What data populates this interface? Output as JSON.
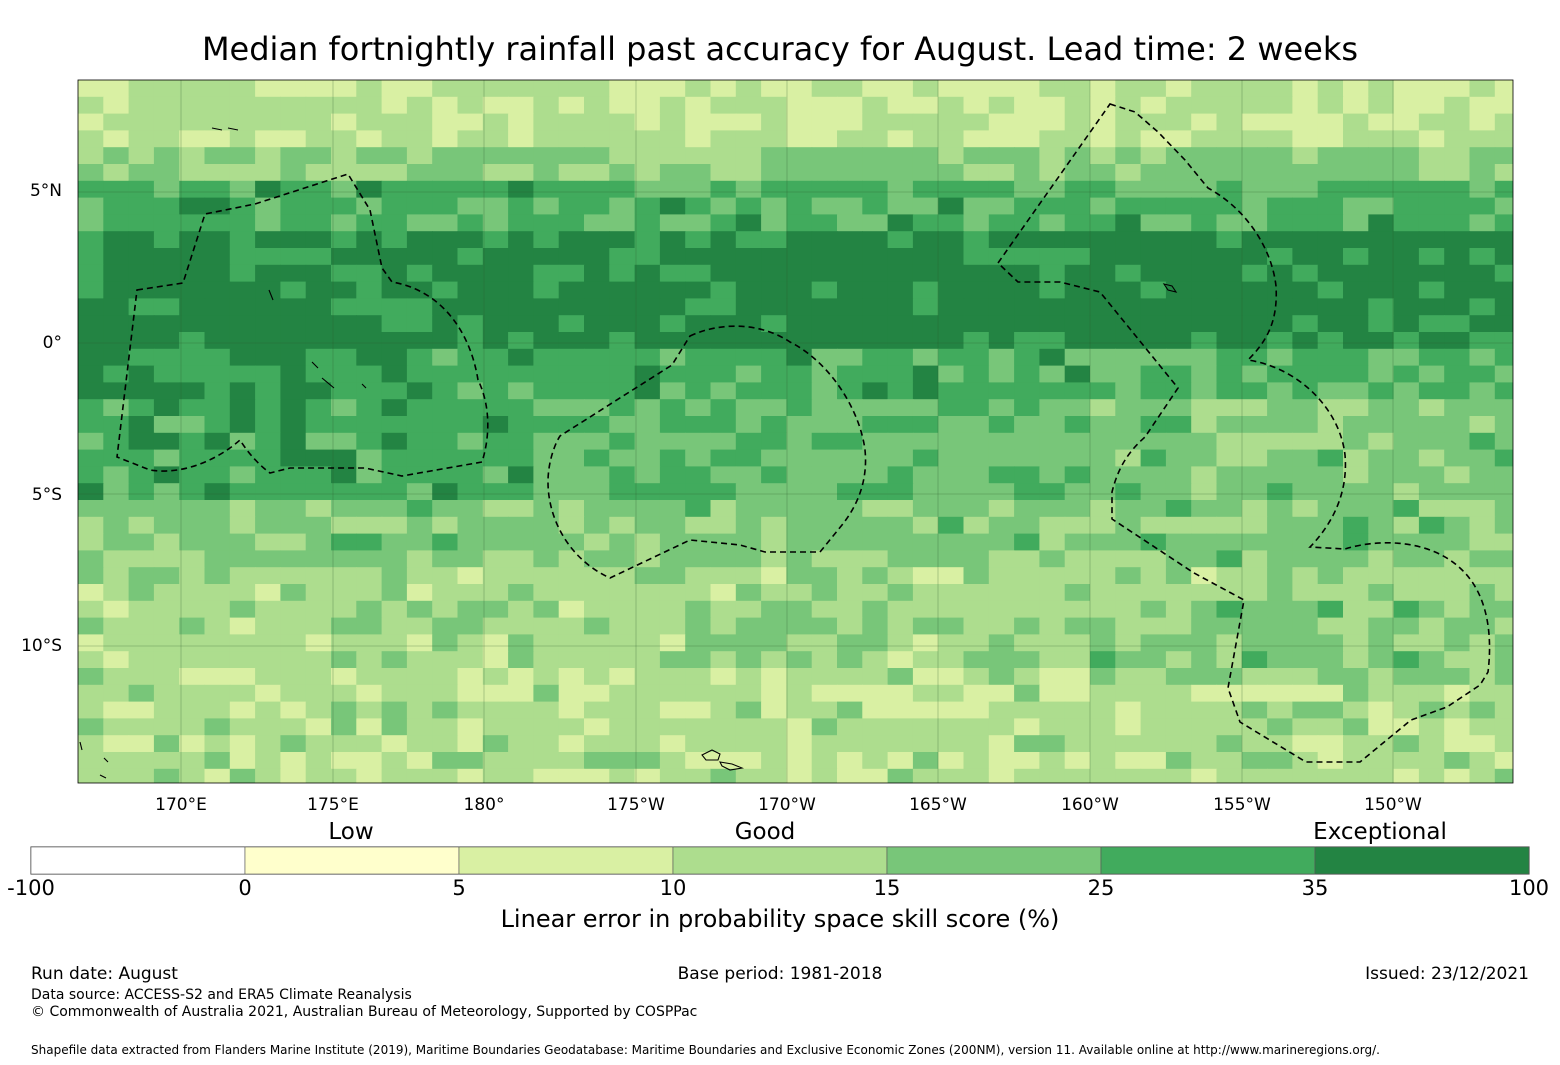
{
  "title": "Median fortnightly rainfall past accuracy for August. Lead time: 2 weeks",
  "map": {
    "lat_labels": [
      "5°N",
      "0°",
      "5°S",
      "10°S"
    ],
    "lon_labels": [
      "170°E",
      "175°E",
      "180°",
      "175°W",
      "170°W",
      "165°W",
      "160°W",
      "155°W",
      "150°W"
    ],
    "colors": {
      "c0": "#ffffff",
      "c1": "#ffffcc",
      "c2": "#d9f0a3",
      "c3": "#addd8e",
      "c4": "#78c679",
      "c5": "#41ab5d",
      "c6": "#238443"
    }
  },
  "colorbar": {
    "categories": [
      "Low",
      "Good",
      "Exceptional"
    ],
    "ticks": [
      "-100",
      "0",
      "5",
      "10",
      "15",
      "25",
      "35",
      "100"
    ],
    "title": "Linear error in probability space skill score (%)"
  },
  "footer": {
    "run_date": "Run date: August",
    "base_period": "Base period: 1981-2018",
    "issued": "Issued: 23/12/2021",
    "data_source": "Data source: ACCESS-S2 and ERA5 Climate Reanalysis",
    "copyright": "© Commonwealth of Australia 2021, Australian Bureau of Meteorology, Supported by COSPPac",
    "shapefile": "Shapefile data extracted from Flanders Marine Institute (2019), Maritime Boundaries Geodatabase: Maritime Boundaries and Exclusive Economic Zones (200NM), version 11. Available online at http://www.marineregions.org/."
  }
}
